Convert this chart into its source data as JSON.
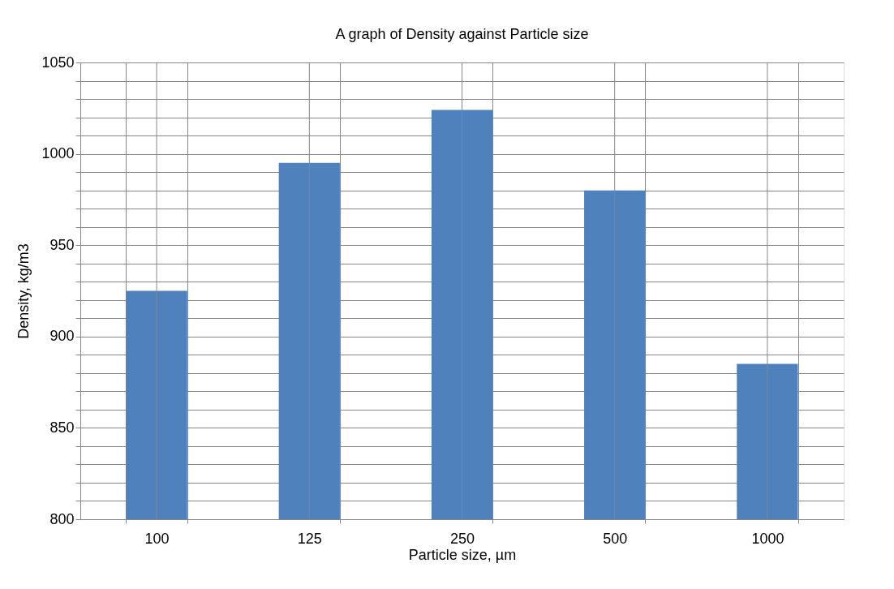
{
  "chart_data": {
    "type": "bar",
    "title": "A graph of Density against Particle size",
    "xlabel": "Particle size, µm",
    "ylabel": "Density, kg/m3",
    "categories": [
      "100",
      "125",
      "250",
      "500",
      "1000"
    ],
    "values": [
      925,
      995,
      1024,
      980,
      885
    ],
    "color": "#4f81bd",
    "ylim": [
      800,
      1050
    ],
    "yticks": [
      800,
      {
        "value": 810,
        "label": null
      },
      {
        "value": 820,
        "label": null
      },
      {
        "value": 830,
        "label": null
      },
      {
        "value": 840,
        "label": null
      },
      850,
      {
        "value": 860,
        "label": null
      },
      {
        "value": 870,
        "label": null
      },
      {
        "value": 880,
        "label": null
      },
      {
        "value": 890,
        "label": null
      },
      900,
      {
        "value": 910,
        "label": null
      },
      {
        "value": 920,
        "label": null
      },
      {
        "value": 930,
        "label": null
      },
      {
        "value": 940,
        "label": null
      },
      950,
      {
        "value": 960,
        "label": null
      },
      {
        "value": 970,
        "label": null
      },
      {
        "value": 980,
        "label": null
      },
      {
        "value": 990,
        "label": null
      },
      1000,
      {
        "value": 1010,
        "label": null
      },
      {
        "value": 1020,
        "label": null
      },
      {
        "value": 1030,
        "label": null
      },
      {
        "value": 1040,
        "label": null
      },
      1050
    ],
    "grid": true
  }
}
